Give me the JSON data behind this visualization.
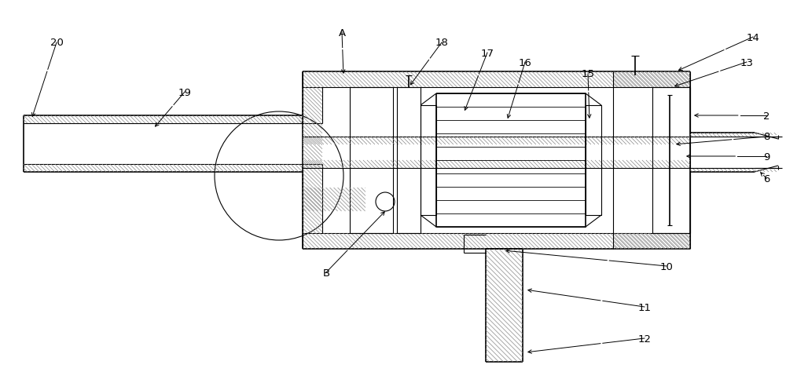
{
  "bg_color": "#ffffff",
  "line_color": "#000000",
  "figsize": [
    10.0,
    4.89
  ],
  "dpi": 100
}
